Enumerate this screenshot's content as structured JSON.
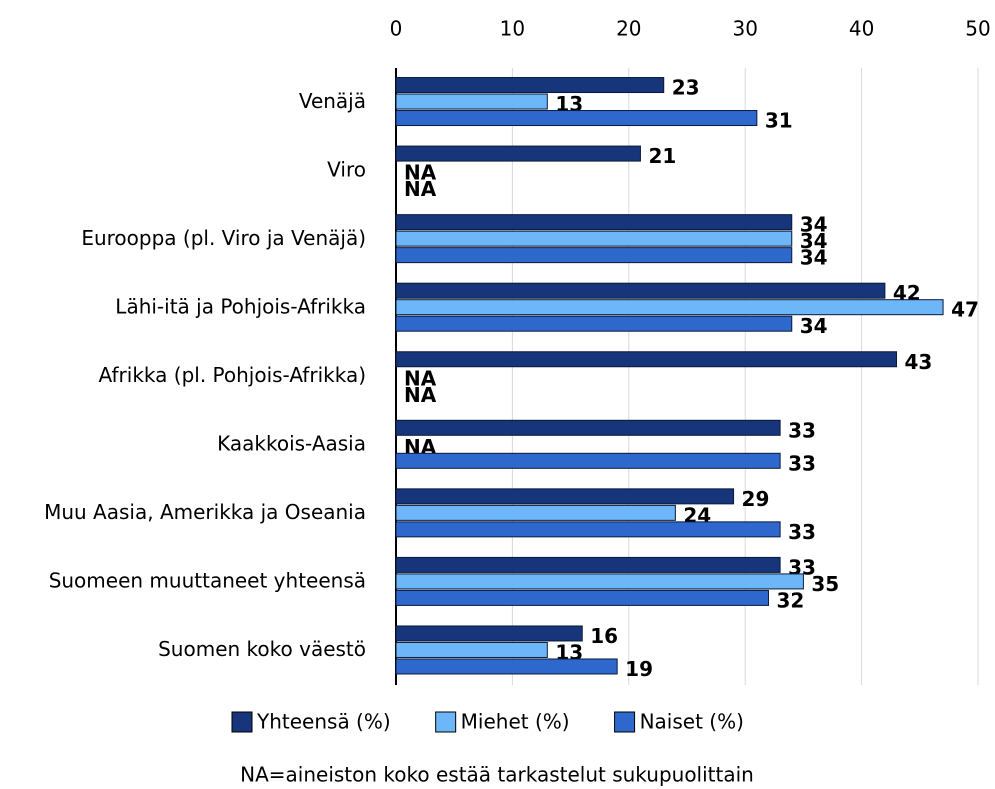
{
  "chart_data": {
    "type": "bar",
    "orientation": "horizontal",
    "categories": [
      "Venäjä",
      "Viro",
      "Eurooppa (pl. Viro ja Venäjä)",
      "Lähi-itä ja Pohjois-Afrikka",
      "Afrikka (pl. Pohjois-Afrikka)",
      "Kaakkois-Aasia",
      "Muu Aasia, Amerikka ja Oseania",
      "Suomeen muuttaneet yhteensä",
      "Suomen koko väestö"
    ],
    "series": [
      {
        "name": "Yhteensä (%)",
        "color": "#17357a",
        "values": [
          23,
          21,
          34,
          42,
          43,
          33,
          29,
          33,
          16
        ]
      },
      {
        "name": "Miehet (%)",
        "color": "#6db6f7",
        "values": [
          13,
          null,
          34,
          47,
          null,
          null,
          24,
          35,
          13
        ],
        "value_labels": [
          "13",
          "NA",
          "34",
          "47",
          "NA",
          "NA",
          "24",
          "35",
          "13"
        ]
      },
      {
        "name": "Naiset (%)",
        "color": "#2f68cc",
        "values": [
          31,
          null,
          34,
          34,
          null,
          33,
          33,
          32,
          19
        ],
        "value_labels": [
          "31",
          "NA",
          "34",
          "34",
          "NA",
          "33",
          "33",
          "32",
          "19"
        ]
      }
    ],
    "xlim": [
      0,
      50
    ],
    "xticks": [
      0,
      10,
      20,
      30,
      40,
      50
    ],
    "grid": true,
    "note": "NA=aineiston koko estää tarkastelut sukupuolittain"
  }
}
